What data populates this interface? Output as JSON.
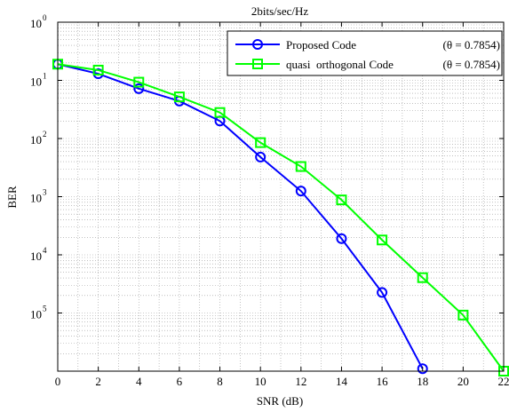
{
  "chart_data": {
    "type": "line",
    "title": "2bits/sec/Hz",
    "xlabel": "SNR (dB)",
    "ylabel": "BER",
    "xlim": [
      0,
      22
    ],
    "ylim_log10": [
      -6,
      0
    ],
    "yscale": "log",
    "grid": true,
    "legend_position": "top-right",
    "x_ticks": [
      "0",
      "2",
      "4",
      "6",
      "8",
      "10",
      "12",
      "14",
      "16",
      "18",
      "20",
      "22"
    ],
    "y_ticks": [
      {
        "base": "10",
        "exp": "0",
        "value": 1
      },
      {
        "base": "10",
        "exp": "1",
        "value": 0.1
      },
      {
        "base": "10",
        "exp": "2",
        "value": 0.01
      },
      {
        "base": "10",
        "exp": "3",
        "value": 0.001
      },
      {
        "base": "10",
        "exp": "4",
        "value": 0.0001
      },
      {
        "base": "10",
        "exp": "5",
        "value": 1e-05
      }
    ],
    "series": [
      {
        "name": "Proposed Code",
        "legend_param": "(θ = 0.7854)",
        "color": "#0000ff",
        "marker": "circle",
        "x": [
          0,
          2,
          4,
          6,
          8,
          10,
          12,
          14,
          16,
          18
        ],
        "y": [
          0.19,
          0.13,
          0.072,
          0.044,
          0.02,
          0.0048,
          0.00125,
          0.00019,
          2.25e-05,
          1.1e-06
        ]
      },
      {
        "name": "quasi  orthogonal Code",
        "legend_param": "(θ = 0.7854)",
        "color": "#00ff00",
        "marker": "square",
        "x": [
          0,
          2,
          4,
          6,
          8,
          10,
          12,
          14,
          16,
          18,
          20,
          22
        ],
        "y": [
          0.19,
          0.15,
          0.093,
          0.052,
          0.028,
          0.0085,
          0.0033,
          0.00088,
          0.00018,
          4.05e-05,
          9.2e-06,
          1e-06
        ]
      }
    ]
  }
}
